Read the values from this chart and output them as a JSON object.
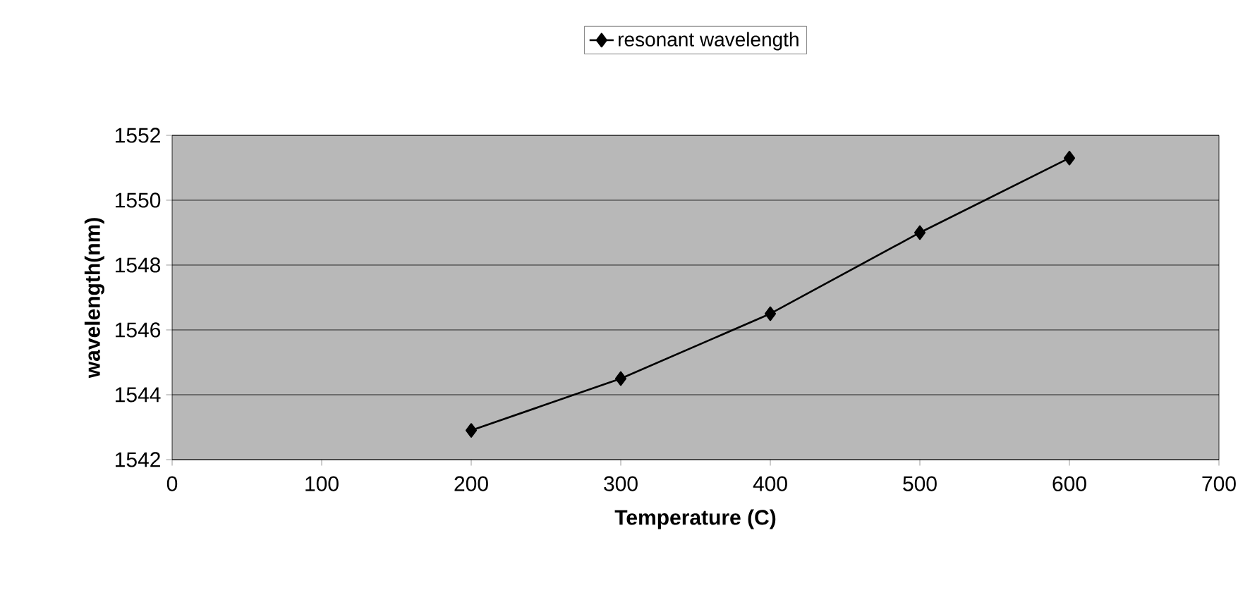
{
  "chart_data": {
    "type": "line",
    "xlabel": "Temperature (C)",
    "ylabel": "wavelength(nm)",
    "x": [
      200,
      300,
      400,
      500,
      600
    ],
    "series": [
      {
        "name": "resonant wavelength",
        "color": "#000000",
        "values": [
          1542.9,
          1544.5,
          1546.5,
          1549.0,
          1551.3
        ]
      }
    ],
    "xlim": [
      0,
      700
    ],
    "xticks": [
      0,
      100,
      200,
      300,
      400,
      500,
      600,
      700
    ],
    "ylim": [
      1542,
      1552
    ],
    "yticks": [
      1542,
      1544,
      1546,
      1548,
      1550,
      1552
    ],
    "grid": "y",
    "legend": "top",
    "marker": "diamond",
    "line_style": "solid"
  }
}
